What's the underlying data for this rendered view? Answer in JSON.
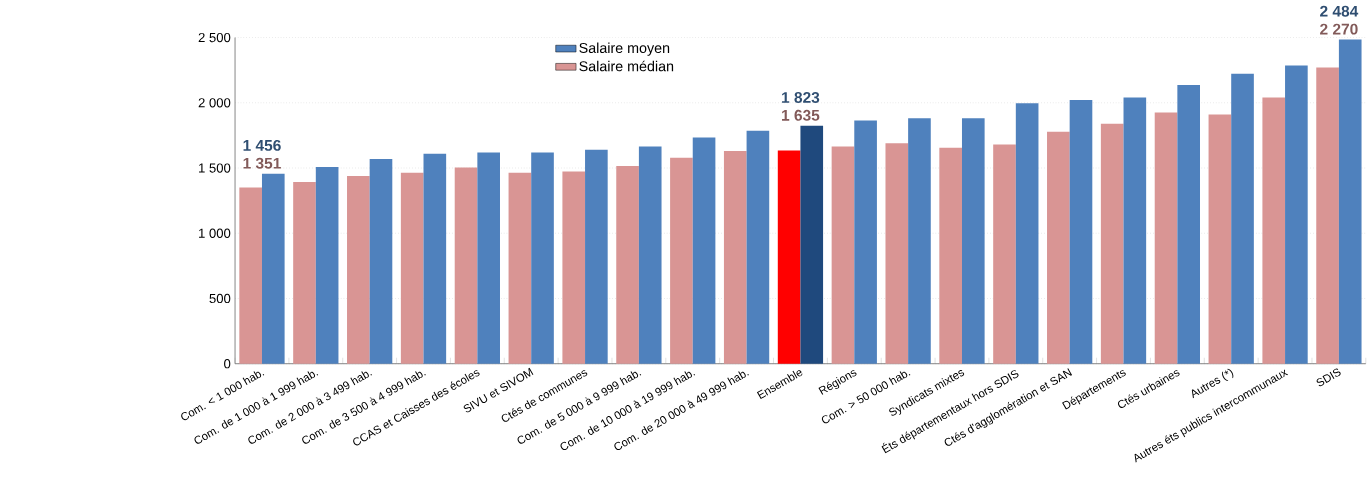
{
  "chart_data": {
    "type": "bar",
    "categories": [
      "Com. < 1 000 hab.",
      "Com. de 1 000 à 1 999 hab.",
      "Com. de 2 000 à 3 499 hab.",
      "Com. de 3 500 à 4 999 hab.",
      "CCAS et Caisses des écoles",
      "SIVU et SIVOM",
      "Ctés de communes",
      "Com. de 5 000 à 9 999 hab.",
      "Com. de 10 000 à 19 999 hab.",
      "Com. de 20 000 à 49 999 hab.",
      "Ensemble",
      "Régions",
      "Com. > 50 000 hab.",
      "Syndicats mixtes",
      "Éts départementaux hors SDIS",
      "Ctés d'agglomération et SAN",
      "Départements",
      "Ctés urbaines",
      "Autres (*)",
      "Autres éts publics intercommunaux",
      "SDIS"
    ],
    "series": [
      {
        "name": "Salaire médian",
        "color": "#d99594",
        "colors": [
          "#d99594",
          "#d99594",
          "#d99594",
          "#d99594",
          "#d99594",
          "#d99594",
          "#d99594",
          "#d99594",
          "#d99594",
          "#d99594",
          "#ff0000",
          "#d99594",
          "#d99594",
          "#d99594",
          "#d99594",
          "#d99594",
          "#d99594",
          "#d99594",
          "#d99594",
          "#d99594",
          "#d99594"
        ],
        "values": [
          1351,
          1393,
          1438,
          1464,
          1503,
          1464,
          1473,
          1516,
          1578,
          1631,
          1635,
          1665,
          1690,
          1656,
          1681,
          1777,
          1839,
          1926,
          1910,
          2040,
          2270
        ],
        "value_labels": [
          "1 351",
          null,
          null,
          null,
          null,
          null,
          null,
          null,
          null,
          null,
          "1 635",
          null,
          null,
          null,
          null,
          null,
          null,
          null,
          null,
          null,
          "2 270"
        ]
      },
      {
        "name": "Salaire moyen",
        "color": "#4f81bd",
        "colors": [
          "#4f81bd",
          "#4f81bd",
          "#4f81bd",
          "#4f81bd",
          "#4f81bd",
          "#4f81bd",
          "#4f81bd",
          "#4f81bd",
          "#4f81bd",
          "#4f81bd",
          "#1f497d",
          "#4f81bd",
          "#4f81bd",
          "#4f81bd",
          "#4f81bd",
          "#4f81bd",
          "#4f81bd",
          "#4f81bd",
          "#4f81bd",
          "#4f81bd",
          "#4f81bd"
        ],
        "values": [
          1456,
          1507,
          1569,
          1610,
          1619,
          1619,
          1640,
          1665,
          1734,
          1786,
          1823,
          1864,
          1882,
          1882,
          1997,
          2022,
          2040,
          2136,
          2223,
          2285,
          2484
        ],
        "value_labels": [
          "1 456",
          null,
          null,
          null,
          null,
          null,
          null,
          null,
          null,
          null,
          "1 823",
          null,
          null,
          null,
          null,
          null,
          null,
          null,
          null,
          null,
          "2 484"
        ]
      }
    ],
    "ylim": [
      0,
      2500
    ],
    "yticks": [
      0,
      500,
      {
        "value": 1000,
        "label": "1 000"
      },
      {
        "value": 1500,
        "label": "1 500"
      },
      {
        "value": 2000,
        "label": "2 000"
      },
      {
        "value": 2500,
        "label": "2 500"
      }
    ],
    "grid": "y",
    "legend": "top"
  }
}
